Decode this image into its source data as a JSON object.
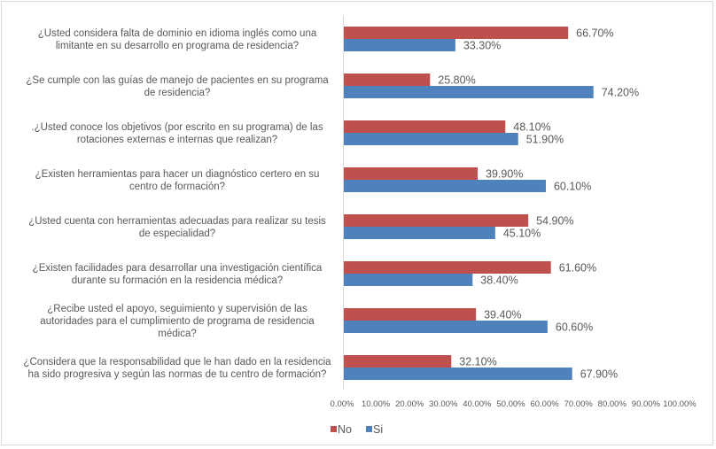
{
  "chart_data": {
    "type": "bar",
    "orientation": "horizontal",
    "title": "",
    "xlabel": "",
    "ylabel": "",
    "xlim": [
      0,
      100
    ],
    "grid": false,
    "legend_position": "bottom-center",
    "categories": [
      [
        "¿Usted considera falta de dominio en idioma inglés como una",
        "limitante en su desarrollo en programa de residencia?"
      ],
      [
        "¿Se cumple con las guías de manejo de pacientes en su programa",
        "de residencia?"
      ],
      [
        ".¿Usted conoce los objetivos (por escrito en su programa) de las",
        "rotaciones externas e internas que realizan?"
      ],
      [
        "¿Existen herramientas para hacer un diagnóstico certero en su",
        "centro de formación?"
      ],
      [
        "¿Usted cuenta con herramientas adecuadas para realizar su tesis",
        "de especialidad?"
      ],
      [
        "¿Existen facilidades para desarrollar una investigación científica",
        "durante su formación en la residencia médica?"
      ],
      [
        "¿Recibe usted el apoyo, seguimiento y supervisión de las",
        "autoridades para el cumplimiento de programa de residencia",
        "médica?"
      ],
      [
        "¿Considera que la responsabilidad que le han dado en la residencia",
        "ha sido progresiva y según las normas de tu centro de formación?"
      ]
    ],
    "series": [
      {
        "name": "No",
        "color": "#C0504D",
        "values": [
          66.7,
          25.8,
          48.1,
          39.9,
          54.9,
          61.6,
          39.4,
          32.1
        ],
        "labels": [
          "66.70%",
          "25.80%",
          "48.10%",
          "39.90%",
          "54.90%",
          "61.60%",
          "39.40%",
          "32.10%"
        ]
      },
      {
        "name": "Si",
        "color": "#4F81BD",
        "values": [
          33.3,
          74.2,
          51.9,
          60.1,
          45.1,
          38.4,
          60.6,
          67.9
        ],
        "labels": [
          "33.30%",
          "74.20%",
          "51.90%",
          "60.10%",
          "45.10%",
          "38.40%",
          "60.60%",
          "67.90%"
        ]
      }
    ],
    "x_ticks": [
      "0.00%",
      "10.00%",
      "20.00%",
      "30.00%",
      "40.00%",
      "50.00%",
      "60.00%",
      "70.00%",
      "80.00%",
      "90.00%",
      "100.00%"
    ],
    "legend": [
      {
        "label": "No",
        "color": "#C0504D"
      },
      {
        "label": "Si",
        "color": "#4F81BD"
      }
    ]
  }
}
